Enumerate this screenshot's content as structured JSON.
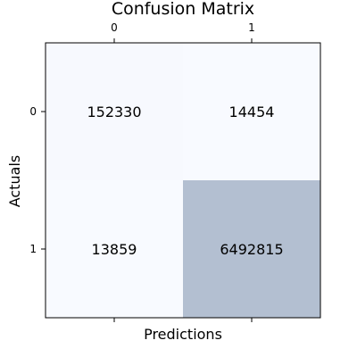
{
  "chart_data": {
    "type": "heatmap",
    "title": "Confusion Matrix",
    "xlabel": "Predictions",
    "ylabel": "Actuals",
    "x_categories": [
      "0",
      "1"
    ],
    "y_categories": [
      "0",
      "1"
    ],
    "matrix": [
      [
        152330,
        14454
      ],
      [
        13859,
        6492815
      ]
    ],
    "x_tick_position": "top-and-bottom",
    "x_tick_labels_position": "top",
    "colors": {
      "low": "#f8faff",
      "high": "#b3bfd1"
    },
    "grid": false,
    "legend": false
  }
}
